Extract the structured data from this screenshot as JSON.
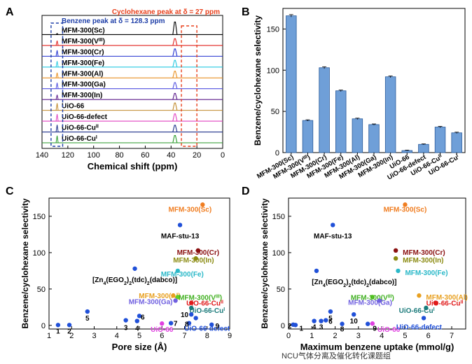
{
  "panels": {
    "A": "A",
    "B": "B",
    "C": "C",
    "D": "D"
  },
  "watermark": "NCU气体分离及催化转化课题组",
  "colors": {
    "blue_box": "#1f3fa8",
    "red_box": "#e8401c",
    "bar_fill": "#6f9fd8",
    "bar_stroke": "#2a5a9a"
  },
  "chart_data": [
    {
      "panel": "A",
      "type": "line",
      "title": "",
      "xlabel": "Chemical shift (ppm)",
      "xlim": [
        140,
        0
      ],
      "xticks": [
        140,
        120,
        100,
        80,
        60,
        40,
        20,
        0
      ],
      "annotations": {
        "benzene": "Benzene peak at δ = 128.3 ppm",
        "cyclohexane": "Cyclohexane peak at δ = 27 ppm"
      },
      "benzene_ppm": 128.3,
      "cyclohexane_ppm": 27,
      "series": [
        {
          "name": "MFM-300(Sc)",
          "color": "#000000",
          "ch_peak": 1.0,
          "bz_peak": 0.05
        },
        {
          "name": "MFM-300(V",
          "sup": "III",
          "close": ")",
          "color": "#e0201e",
          "ch_peak": 0.55,
          "bz_peak": 0.2
        },
        {
          "name": "MFM-300(Cr)",
          "color": "#2030d0",
          "ch_peak": 0.6,
          "bz_peak": 0.25
        },
        {
          "name": "MFM-300(Fe)",
          "color": "#25c8e0",
          "ch_peak": 0.55,
          "bz_peak": 0.25
        },
        {
          "name": "MFM-300(Al)",
          "color": "#e89020",
          "ch_peak": 0.55,
          "bz_peak": 0.22
        },
        {
          "name": "MFM-300(Ga)",
          "color": "#5050e0",
          "ch_peak": 0.5,
          "bz_peak": 0.25
        },
        {
          "name": "MFM-300(In)",
          "color": "#5a1a8a",
          "ch_peak": 0.5,
          "bz_peak": 0.2
        },
        {
          "name": "UiO-66",
          "color": "#c0882a",
          "ch_peak": 0.6,
          "bz_peak": 0.3
        },
        {
          "name": "UiO-66-defect",
          "color": "#e040c0",
          "ch_peak": 0.6,
          "bz_peak": 0.3
        },
        {
          "name": "UiO-66-Cu",
          "sup": "II",
          "close": "",
          "color": "#1d2f8a",
          "ch_peak": 0.55,
          "bz_peak": 0.3
        },
        {
          "name": "UiO-66-Cu",
          "sup": "I",
          "close": "",
          "color": "#2a9a2a",
          "ch_peak": 0.6,
          "bz_peak": 0.3
        }
      ]
    },
    {
      "panel": "B",
      "type": "bar",
      "title": "",
      "xlabel": "",
      "ylabel": "Benzene/cyclohexane selectivity",
      "ylim": [
        0,
        175
      ],
      "yticks": [
        0,
        50,
        100,
        150
      ],
      "categories": [
        {
          "name": "MFM-300(Sc)"
        },
        {
          "name": "MFM-300(V",
          "sup": "III",
          "close": ")"
        },
        {
          "name": "MFM-300(Cr)"
        },
        {
          "name": "MFM-300(Fe)"
        },
        {
          "name": "MFM-300(Al)"
        },
        {
          "name": "MFM-300(Ga)"
        },
        {
          "name": "MFM-300(In)"
        },
        {
          "name": "UiO-66"
        },
        {
          "name": "UiO-66-defect"
        },
        {
          "name": "UiO-66-Cu",
          "sup": "II",
          "close": ""
        },
        {
          "name": "UiO-66-Cu",
          "sup": "I",
          "close": ""
        }
      ],
      "values": [
        166,
        39,
        103,
        75,
        41,
        34,
        92,
        2.5,
        10,
        31,
        24
      ],
      "errors": [
        1.5,
        0.8,
        1.2,
        0.9,
        0.8,
        0.8,
        1.0,
        0.5,
        0.6,
        0.8,
        0.8
      ]
    },
    {
      "panel": "C",
      "type": "scatter",
      "title": "",
      "xlabel": "Pore size (Å)",
      "ylabel": "Benzene/cyclohexane selectivity",
      "xlim": [
        1,
        9
      ],
      "ylim": [
        -5,
        175
      ],
      "xticks": [
        1,
        2,
        3,
        4,
        5,
        6,
        7,
        8,
        9
      ],
      "yticks": [
        0,
        50,
        100,
        150
      ],
      "points": [
        {
          "x": 7.8,
          "y": 166,
          "color": "#f07d20",
          "label": "MFM-300(Sc)",
          "lc": "#f07d20",
          "la": "end",
          "ldx": 0.4,
          "ldy": -6
        },
        {
          "x": 6.8,
          "y": 138,
          "color": "#2050d8",
          "label": "MAF-stu-13",
          "lc": "#000000",
          "la": "mid",
          "ldx": 0,
          "ldy": -15
        },
        {
          "x": 7.6,
          "y": 103,
          "color": "#8a1010",
          "label": "MFM-300(Cr)",
          "lc": "#8a1010",
          "la": "mid",
          "ldx": 0,
          "ldy": -2
        },
        {
          "x": 7.5,
          "y": 92,
          "color": "#8a8a10",
          "label": "MFM-300(In)",
          "lc": "#8a8a10",
          "la": "mid",
          "ldx": -0.1,
          "ldy": -2
        },
        {
          "x": 6.7,
          "y": 75,
          "color": "#2ab8c8",
          "label": "MFM-300(Fe)",
          "lc": "#2ab8c8",
          "la": "mid",
          "ldx": 0.2,
          "ldy": -4
        },
        {
          "x": 4.8,
          "y": 78,
          "color": "#2050d8",
          "label": "[Zn4(EGO2)2(tdc)2(dabco)]",
          "lc": "#000000",
          "la": "mid",
          "ldx": 0,
          "ldy": -15
        },
        {
          "x": 6.5,
          "y": 41,
          "color": "#e8a020",
          "label": "MFM-300(Al)",
          "lc": "#e8a020",
          "la": "mid",
          "ldx": -0.6,
          "ldy": 0
        },
        {
          "x": 6.7,
          "y": 39,
          "color": "#60d020",
          "label": "MFM-300(V",
          "sup": "III",
          "close": ")",
          "lc": "#40b020",
          "la": "mid",
          "ldx": 1.0,
          "ldy": 0
        },
        {
          "x": 6.6,
          "y": 34,
          "color": "#7060e0",
          "label": "MFM-300(Ga)",
          "lc": "#7060e0",
          "la": "mid",
          "ldx": -1.1,
          "ldy": -1
        },
        {
          "x": 7.3,
          "y": 31,
          "color": "#e01a1a",
          "label": "UiO-66-Cu",
          "sup": "II",
          "close": "",
          "lc": "#e01a1a",
          "la": "mid",
          "ldx": 0.6,
          "ldy": 0
        },
        {
          "x": 7.3,
          "y": 24,
          "color": "#1a7a7a",
          "label": "UiO-66-Cu",
          "sup": "I",
          "close": "",
          "lc": "#1a7a7a",
          "la": "mid",
          "ldx": 0.7,
          "ldy": -3
        },
        {
          "x": 6.0,
          "y": 2.5,
          "color": "#e040e0",
          "label": "UiO-66",
          "lc": "#e040e0",
          "la": "mid",
          "ldx": 0,
          "ldy": -8
        },
        {
          "x": 7.5,
          "y": 10,
          "color": "#2050d8",
          "label": "UiO-66-defect",
          "lc": "#2050d8",
          "la": "mid",
          "ldx": 0.5,
          "ldy": -14
        },
        {
          "x": 1.4,
          "y": 0.5,
          "color": "#2050d8",
          "label": "1",
          "lc": "#000000",
          "la": "mid",
          "ldx": 0,
          "ldy": -8
        },
        {
          "x": 1.9,
          "y": 0.5,
          "color": "#2050d8",
          "label": "2",
          "lc": "#000000",
          "la": "mid",
          "ldx": 0,
          "ldy": -8
        },
        {
          "x": 4.4,
          "y": 7,
          "color": "#2050d8",
          "label": "3",
          "lc": "#000000",
          "la": "mid",
          "ldx": 0,
          "ldy": -10
        },
        {
          "x": 4.9,
          "y": 6,
          "color": "#2050d8",
          "label": "4",
          "lc": "#000000",
          "la": "mid",
          "ldx": 0,
          "ldy": -10
        },
        {
          "x": 2.7,
          "y": 19,
          "color": "#2050d8",
          "label": "5",
          "lc": "#000000",
          "la": "mid",
          "ldx": 0,
          "ldy": -9
        },
        {
          "x": 5.0,
          "y": 13,
          "color": "#2050d8",
          "label": "6",
          "lc": "#000000",
          "la": "mid",
          "ldx": 0.15,
          "ldy": -1
        },
        {
          "x": 6.4,
          "y": 3,
          "color": "#2050d8",
          "label": "7",
          "lc": "#000000",
          "la": "mid",
          "ldx": 0.2,
          "ldy": 0
        },
        {
          "x": 7.2,
          "y": 3,
          "color": "#2050d8",
          "label": "8",
          "lc": "#000000",
          "la": "mid",
          "ldx": -0.1,
          "ldy": -1
        },
        {
          "x": 8.2,
          "y": 1,
          "color": "#2050d8",
          "label": "9",
          "lc": "#000000",
          "la": "mid",
          "ldx": 0.25,
          "ldy": -1
        },
        {
          "x": 7.3,
          "y": 15,
          "color": "#2050d8",
          "label": "10",
          "lc": "#000000",
          "la": "mid",
          "ldx": -0.3,
          "ldy": 0
        }
      ]
    },
    {
      "panel": "D",
      "type": "scatter",
      "title": "",
      "xlabel": "Maximum benzene uptake (mmol/g)",
      "ylabel": "Benzene/cyclohexane selectivity",
      "xlim": [
        0,
        7.6
      ],
      "ylim": [
        -5,
        175
      ],
      "xticks": [
        0,
        1,
        2,
        3,
        4,
        5,
        6,
        7
      ],
      "yticks": [
        0,
        50,
        100,
        150
      ],
      "points": [
        {
          "x": 5.0,
          "y": 166,
          "color": "#f07d20",
          "label": "MFM-300(Sc)",
          "lc": "#f07d20",
          "la": "mid",
          "ldx": 0,
          "ldy": -6
        },
        {
          "x": 1.9,
          "y": 138,
          "color": "#2050d8",
          "label": "MAF-stu-13",
          "lc": "#000000",
          "la": "mid",
          "ldx": 0,
          "ldy": -15
        },
        {
          "x": 4.6,
          "y": 103,
          "color": "#8a1010",
          "label": "MFM-300(Cr)",
          "lc": "#8a1010",
          "la": "start",
          "ldx": 0.3,
          "ldy": -2
        },
        {
          "x": 4.6,
          "y": 92,
          "color": "#8a8a10",
          "label": "MFM-300(In)",
          "lc": "#8a8a10",
          "la": "start",
          "ldx": 0.3,
          "ldy": -2
        },
        {
          "x": 4.7,
          "y": 75,
          "color": "#2ab8c8",
          "label": "MFM-300(Fe)",
          "lc": "#2ab8c8",
          "la": "start",
          "ldx": 0.3,
          "ldy": -2
        },
        {
          "x": 1.2,
          "y": 75,
          "color": "#2050d8",
          "label": "[Zn4(EGO2)2(tdc)2(dabco)]",
          "lc": "#000000",
          "la": "start",
          "ldx": -0.2,
          "ldy": -15
        },
        {
          "x": 5.6,
          "y": 41,
          "color": "#e8a020",
          "label": "MFM-300(Al)",
          "lc": "#e8a020",
          "la": "start",
          "ldx": 0.3,
          "ldy": -2
        },
        {
          "x": 3.6,
          "y": 39,
          "color": "#60d020",
          "label": "MFM-300(V",
          "sup": "III",
          "close": ")",
          "lc": "#40b020",
          "la": "mid",
          "ldx": 0,
          "ldy": 0
        },
        {
          "x": 3.9,
          "y": 34,
          "color": "#7060e0",
          "label": "MFM-300(Ga)",
          "lc": "#7060e0",
          "la": "mid",
          "ldx": -0.4,
          "ldy": -2
        },
        {
          "x": 6.3,
          "y": 31,
          "color": "#e01a1a",
          "label": "UiO-66-Cu",
          "sup": "II",
          "close": "",
          "lc": "#e01a1a",
          "la": "mid",
          "ldx": 0.4,
          "ldy": 0
        },
        {
          "x": 5.9,
          "y": 24,
          "color": "#1a7a7a",
          "label": "UiO-66-Cu",
          "sup": "I",
          "close": "",
          "lc": "#1a7a7a",
          "la": "mid",
          "ldx": -0.4,
          "ldy": -3
        },
        {
          "x": 3.6,
          "y": 2.5,
          "color": "#e040e0",
          "label": "UiO-66",
          "lc": "#e040e0",
          "la": "mid",
          "ldx": 0.7,
          "ldy": -8
        },
        {
          "x": 5.8,
          "y": 10,
          "color": "#2050d8",
          "label": "UiO-66-defect",
          "lc": "#2050d8",
          "la": "mid",
          "ldx": -0.2,
          "ldy": -12
        },
        {
          "x": 0.3,
          "y": 0.5,
          "color": "#2050d8",
          "label": "1",
          "lc": "#000000",
          "la": "mid",
          "ldx": 0.25,
          "ldy": -4
        },
        {
          "x": 0.2,
          "y": 1,
          "color": "#2050d8",
          "label": "2",
          "lc": "#000000",
          "la": "mid",
          "ldx": -0.15,
          "ldy": -1
        },
        {
          "x": 1.4,
          "y": 6,
          "color": "#2050d8",
          "label": "3",
          "lc": "#000000",
          "la": "mid",
          "ldx": 0,
          "ldy": -8
        },
        {
          "x": 1.1,
          "y": 6,
          "color": "#2050d8",
          "label": "4",
          "lc": "#000000",
          "la": "mid",
          "ldx": 0,
          "ldy": -8
        },
        {
          "x": 1.8,
          "y": 19,
          "color": "#2050d8",
          "label": "5",
          "lc": "#000000",
          "la": "mid",
          "ldx": 0,
          "ldy": -9
        },
        {
          "x": 1.6,
          "y": 7,
          "color": "#2050d8",
          "label": "6",
          "lc": "#000000",
          "la": "mid",
          "ldx": 0.2,
          "ldy": -1
        },
        {
          "x": 2.3,
          "y": 2,
          "color": "#2050d8",
          "label": "8",
          "lc": "#000000",
          "la": "mid",
          "ldx": 0,
          "ldy": -7
        },
        {
          "x": 3.4,
          "y": 2,
          "color": "#2050d8",
          "label": "9",
          "lc": "#000000",
          "la": "mid",
          "ldx": 0.3,
          "ldy": -6
        },
        {
          "x": 2.8,
          "y": 15,
          "color": "#2050d8",
          "label": "10",
          "lc": "#000000",
          "la": "mid",
          "ldx": 0,
          "ldy": -9
        }
      ]
    }
  ]
}
